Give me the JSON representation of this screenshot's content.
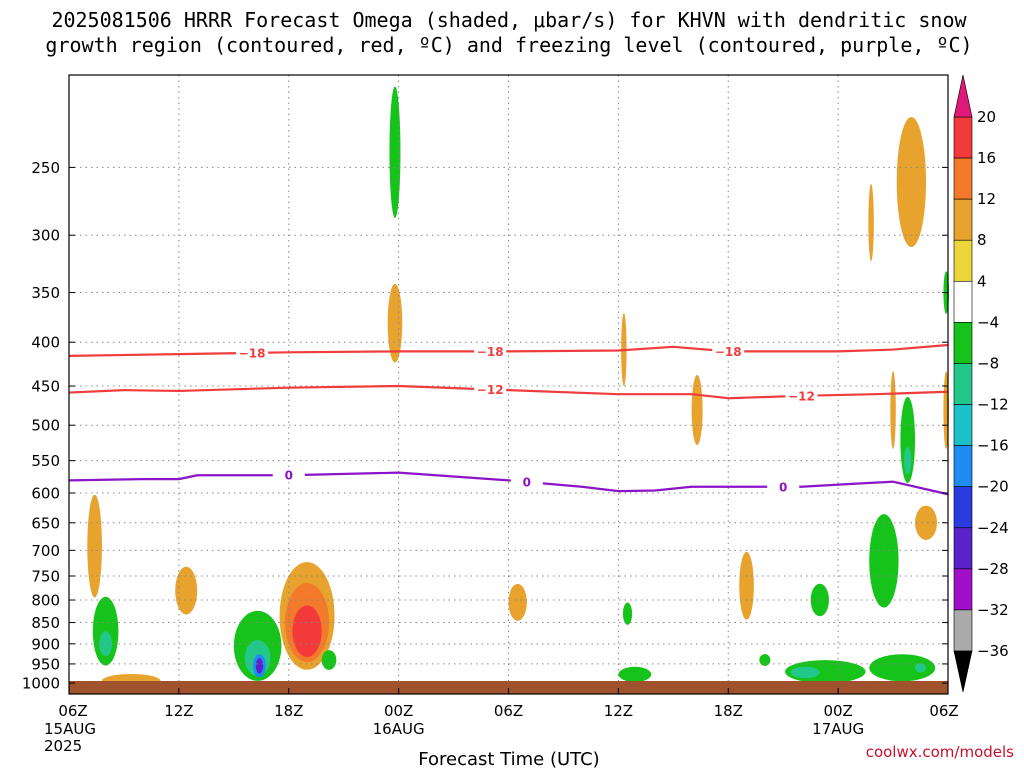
{
  "chart_data": {
    "type": "heatmap",
    "title_lines": [
      "2025081506 HRRR Forecast Omega (shaded, μbar/s) for KHVN with dendritic snow",
      "growth region (contoured, red, ºC) and freezing level (contoured, purple, ºC)"
    ],
    "xlabel": "Forecast Time (UTC)",
    "x_ticks": [
      {
        "hour": 0,
        "label": "06Z",
        "sub": [
          "15AUG",
          "2025"
        ]
      },
      {
        "hour": 6,
        "label": "12Z",
        "sub": []
      },
      {
        "hour": 12,
        "label": "18Z",
        "sub": []
      },
      {
        "hour": 18,
        "label": "00Z",
        "sub": [
          "16AUG"
        ]
      },
      {
        "hour": 24,
        "label": "06Z",
        "sub": []
      },
      {
        "hour": 30,
        "label": "12Z",
        "sub": []
      },
      {
        "hour": 36,
        "label": "18Z",
        "sub": []
      },
      {
        "hour": 42,
        "label": "00Z",
        "sub": [
          "17AUG"
        ]
      },
      {
        "hour": 48,
        "label": "06Z",
        "sub": []
      }
    ],
    "xlim_hours": [
      0,
      48
    ],
    "y_ticks": [
      250,
      300,
      350,
      400,
      450,
      500,
      550,
      600,
      650,
      700,
      750,
      800,
      850,
      900,
      950,
      1000
    ],
    "ylim_hPa": [
      1030,
      195
    ],
    "y_scale": "log-pressure",
    "grid": true,
    "colorbar": {
      "ticks": [
        "20",
        "16",
        "12",
        "8",
        "4",
        "−4",
        "−8",
        "−12",
        "−16",
        "−20",
        "−24",
        "−28",
        "−32",
        "−36"
      ],
      "bands": [
        {
          "from": 16,
          "to": 20,
          "color": "#f23a3a"
        },
        {
          "from": 12,
          "to": 16,
          "color": "#f27a2a"
        },
        {
          "from": 8,
          "to": 12,
          "color": "#e8a22e"
        },
        {
          "from": 4,
          "to": 8,
          "color": "#ead53a"
        },
        {
          "from": -4,
          "to": 4,
          "color": "#ffffff"
        },
        {
          "from": -8,
          "to": -4,
          "color": "#16c31a"
        },
        {
          "from": -12,
          "to": -8,
          "color": "#22c88a"
        },
        {
          "from": -16,
          "to": -12,
          "color": "#1cc0c8"
        },
        {
          "from": -20,
          "to": -16,
          "color": "#1e8cf0"
        },
        {
          "from": -24,
          "to": -20,
          "color": "#2a3ce0"
        },
        {
          "from": -28,
          "to": -24,
          "color": "#5a22c8"
        },
        {
          "from": -32,
          "to": -28,
          "color": "#a010c8"
        },
        {
          "from": -36,
          "to": -32,
          "color": "#aaaaaa"
        }
      ],
      "top_arrow_color": "#e0187a",
      "bottom_arrow_color": "#000000"
    },
    "contours": [
      {
        "label": "−18",
        "color": "#f03c3c",
        "label_hours": [
          10,
          23,
          36
        ],
        "points": [
          [
            0,
            415
          ],
          [
            6,
            413
          ],
          [
            12,
            411
          ],
          [
            18,
            410
          ],
          [
            24,
            410
          ],
          [
            30,
            409
          ],
          [
            33,
            405
          ],
          [
            36,
            410
          ],
          [
            42,
            410
          ],
          [
            45,
            408
          ],
          [
            48,
            403
          ]
        ]
      },
      {
        "label": "−12",
        "color": "#f03c3c",
        "label_hours": [
          23,
          40
        ],
        "points": [
          [
            0,
            458
          ],
          [
            3,
            455
          ],
          [
            6,
            456
          ],
          [
            12,
            452
          ],
          [
            18,
            450
          ],
          [
            24,
            455
          ],
          [
            30,
            460
          ],
          [
            34,
            460
          ],
          [
            36,
            465
          ],
          [
            40,
            462
          ],
          [
            44,
            460
          ],
          [
            48,
            457
          ]
        ]
      },
      {
        "label": "0",
        "color": "#8c14c8",
        "label_hours": [
          12,
          25,
          39
        ],
        "points": [
          [
            0,
            580
          ],
          [
            4,
            578
          ],
          [
            6,
            578
          ],
          [
            7,
            572
          ],
          [
            12,
            572
          ],
          [
            18,
            568
          ],
          [
            24,
            580
          ],
          [
            28,
            590
          ],
          [
            30,
            597
          ],
          [
            32,
            596
          ],
          [
            34,
            590
          ],
          [
            40,
            590
          ],
          [
            43,
            585
          ],
          [
            45,
            582
          ],
          [
            48,
            602
          ]
        ]
      }
    ],
    "ground_color": "#a0522d",
    "omega_regions": [
      {
        "type": "ellipse",
        "h": 2.0,
        "p": 870,
        "rh": 0.7,
        "rp": 80,
        "band": -8
      },
      {
        "type": "ellipse",
        "h": 2.0,
        "p": 900,
        "rh": 0.35,
        "rp": 30,
        "band": -12
      },
      {
        "type": "ellipse",
        "h": 1.4,
        "p": 692,
        "rh": 0.4,
        "rp": 95,
        "band": 8
      },
      {
        "type": "ellipse",
        "h": 3.4,
        "p": 994,
        "rh": 1.6,
        "rp": 18,
        "band": 8
      },
      {
        "type": "ellipse",
        "h": 6.4,
        "p": 780,
        "rh": 0.6,
        "rp": 50,
        "band": 8
      },
      {
        "type": "ellipse",
        "h": 10.3,
        "p": 905,
        "rh": 1.3,
        "rp": 85,
        "band": -8
      },
      {
        "type": "ellipse",
        "h": 10.3,
        "p": 935,
        "rh": 0.7,
        "rp": 45,
        "band": -12
      },
      {
        "type": "ellipse",
        "h": 10.4,
        "p": 955,
        "rh": 0.35,
        "rp": 30,
        "band": -20
      },
      {
        "type": "ellipse",
        "h": 10.4,
        "p": 955,
        "rh": 0.2,
        "rp": 20,
        "band": -28
      },
      {
        "type": "ellipse",
        "h": 13.0,
        "p": 835,
        "rh": 1.5,
        "rp": 120,
        "band": 8
      },
      {
        "type": "ellipse",
        "h": 13.0,
        "p": 850,
        "rh": 1.2,
        "rp": 90,
        "band": 12
      },
      {
        "type": "ellipse",
        "h": 13.0,
        "p": 870,
        "rh": 0.8,
        "rp": 60,
        "band": 20
      },
      {
        "type": "ellipse",
        "h": 14.2,
        "p": 940,
        "rh": 0.4,
        "rp": 25,
        "band": -8
      },
      {
        "type": "ellipse",
        "h": 17.8,
        "p": 240,
        "rh": 0.3,
        "rp": 42,
        "band": -8
      },
      {
        "type": "ellipse",
        "h": 17.8,
        "p": 380,
        "rh": 0.4,
        "rp": 40,
        "band": 8
      },
      {
        "type": "ellipse",
        "h": 24.5,
        "p": 805,
        "rh": 0.5,
        "rp": 40,
        "band": 8
      },
      {
        "type": "ellipse",
        "h": 30.3,
        "p": 408,
        "rh": 0.15,
        "rp": 40,
        "band": 8
      },
      {
        "type": "ellipse",
        "h": 30.5,
        "p": 830,
        "rh": 0.25,
        "rp": 25,
        "band": -8
      },
      {
        "type": "ellipse",
        "h": 30.9,
        "p": 977,
        "rh": 0.9,
        "rp": 20,
        "band": -8
      },
      {
        "type": "ellipse",
        "h": 34.3,
        "p": 480,
        "rh": 0.3,
        "rp": 45,
        "band": 8
      },
      {
        "type": "ellipse",
        "h": 37.0,
        "p": 770,
        "rh": 0.4,
        "rp": 70,
        "band": 8
      },
      {
        "type": "ellipse",
        "h": 38.0,
        "p": 940,
        "rh": 0.3,
        "rp": 15,
        "band": -8
      },
      {
        "type": "ellipse",
        "h": 41.0,
        "p": 800,
        "rh": 0.5,
        "rp": 35,
        "band": -8
      },
      {
        "type": "ellipse",
        "h": 41.3,
        "p": 970,
        "rh": 2.2,
        "rp": 30,
        "band": -8
      },
      {
        "type": "ellipse",
        "h": 40.2,
        "p": 972,
        "rh": 0.8,
        "rp": 15,
        "band": -12
      },
      {
        "type": "ellipse",
        "h": 45.5,
        "p": 960,
        "rh": 1.8,
        "rp": 35,
        "band": -8
      },
      {
        "type": "ellipse",
        "h": 46.5,
        "p": 960,
        "rh": 0.3,
        "rp": 12,
        "band": -12
      },
      {
        "type": "ellipse",
        "h": 44.5,
        "p": 720,
        "rh": 0.8,
        "rp": 90,
        "band": -8
      },
      {
        "type": "ellipse",
        "h": 45.8,
        "p": 520,
        "rh": 0.4,
        "rp": 60,
        "band": -8
      },
      {
        "type": "ellipse",
        "h": 45.8,
        "p": 550,
        "rh": 0.2,
        "rp": 20,
        "band": -12
      },
      {
        "type": "ellipse",
        "h": 46.0,
        "p": 260,
        "rh": 0.8,
        "rp": 45,
        "band": 8
      },
      {
        "type": "ellipse",
        "h": 43.8,
        "p": 290,
        "rh": 0.15,
        "rp": 30,
        "band": 8
      },
      {
        "type": "ellipse",
        "h": 45.0,
        "p": 480,
        "rh": 0.15,
        "rp": 50,
        "band": 8
      },
      {
        "type": "ellipse",
        "h": 46.8,
        "p": 650,
        "rh": 0.6,
        "rp": 30,
        "band": 8
      },
      {
        "type": "ellipse",
        "h": 47.9,
        "p": 480,
        "rh": 0.15,
        "rp": 50,
        "band": 8
      },
      {
        "type": "ellipse",
        "h": 47.9,
        "p": 350,
        "rh": 0.15,
        "rp": 20,
        "band": -8
      }
    ],
    "watermark": "coolwx.com/models"
  }
}
